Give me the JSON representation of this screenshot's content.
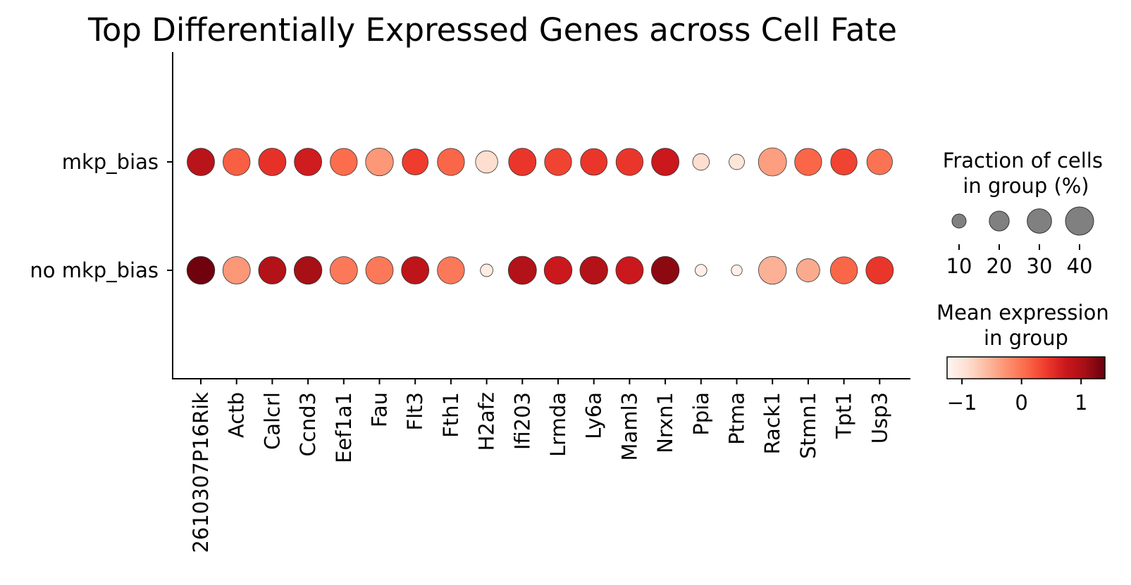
{
  "chart_data": {
    "type": "dotplot",
    "title": "Top Differentially Expressed Genes across Cell Fate",
    "genes": [
      "2610307P16Rik",
      "Actb",
      "Calcrl",
      "Ccnd3",
      "Eef1a1",
      "Fau",
      "Flt3",
      "Fth1",
      "H2afz",
      "Ifi203",
      "Lrmda",
      "Ly6a",
      "Maml3",
      "Nrxn1",
      "Ppia",
      "Ptma",
      "Rack1",
      "Stmn1",
      "Tpt1",
      "Usp3"
    ],
    "groups": [
      "mkp_bias",
      "no mkp_bias"
    ],
    "fraction_pct": [
      [
        38,
        37,
        38,
        38,
        37,
        39,
        34,
        37,
        25,
        38,
        37,
        36,
        37,
        38,
        14,
        12,
        40,
        37,
        35,
        33
      ],
      [
        39,
        38,
        38,
        39,
        38,
        38,
        38,
        37,
        8,
        40,
        39,
        39,
        38,
        39,
        7,
        6,
        39,
        27,
        37,
        38
      ]
    ],
    "mean_expression": [
      [
        0.9,
        0.15,
        0.5,
        0.7,
        0.05,
        -0.3,
        0.4,
        0.1,
        -0.9,
        0.45,
        0.35,
        0.45,
        0.45,
        0.75,
        -0.9,
        -1.0,
        -0.35,
        0.1,
        0.35,
        0.0
      ],
      [
        1.35,
        -0.3,
        0.95,
        1.05,
        -0.05,
        -0.05,
        0.85,
        -0.05,
        -1.1,
        0.95,
        0.75,
        0.95,
        0.75,
        1.2,
        -1.15,
        -1.15,
        -0.5,
        -0.45,
        0.1,
        0.45
      ]
    ],
    "size_legend": {
      "title": "Fraction of cells\nin group (%)",
      "values": [
        10,
        20,
        30,
        40
      ],
      "labels": [
        "10",
        "20",
        "30",
        "40"
      ]
    },
    "color_legend": {
      "title": "Mean expression\nin group",
      "range": [
        -1.25,
        1.4
      ],
      "ticks": [
        -1,
        0,
        1
      ],
      "tick_labels": [
        "−1",
        "0",
        "1"
      ],
      "colormap": "Reds"
    },
    "colors": {
      "reds": [
        "#fff5f0",
        "#fee0d2",
        "#fcbba1",
        "#fc9272",
        "#fb6a4a",
        "#ef3b2c",
        "#cb181d",
        "#a50f15",
        "#67000d"
      ]
    },
    "grid": false,
    "legend": "right"
  }
}
